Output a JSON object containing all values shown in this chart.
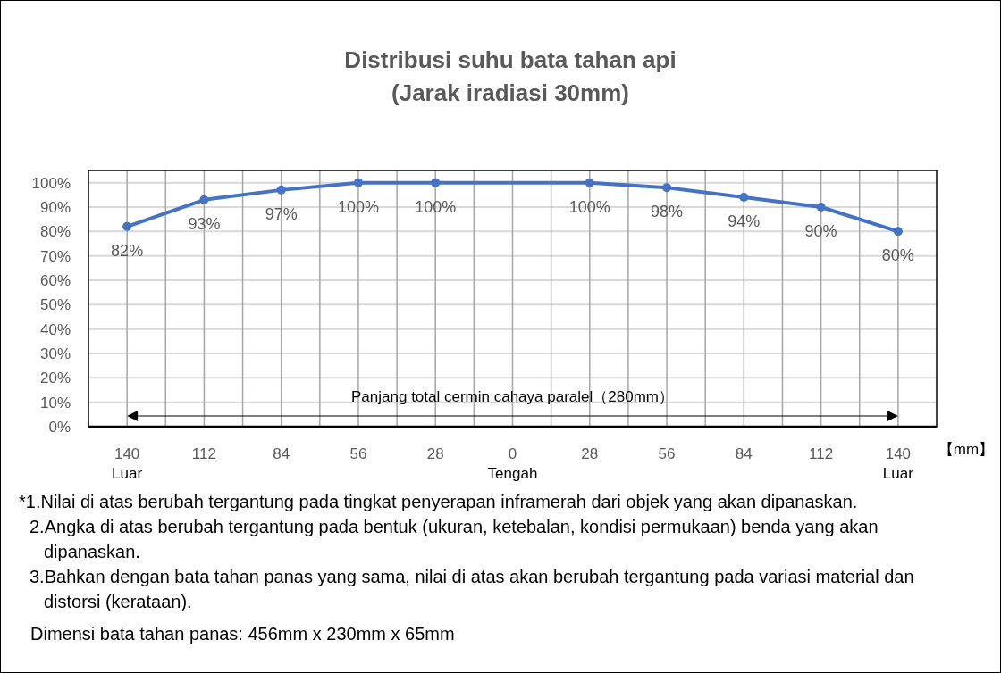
{
  "chart_data": {
    "type": "line",
    "title": "Distribusi suhu bata tahan api",
    "subtitle": "(Jarak iradiasi 30mm)",
    "xlabel": "【mm】",
    "x": [
      -140,
      -112,
      -84,
      -56,
      -28,
      28,
      56,
      84,
      112,
      140
    ],
    "series": [
      {
        "color": "#4472c4",
        "values": [
          82,
          93,
          97,
          100,
          100,
          100,
          98,
          94,
          90,
          80
        ],
        "value_labels": [
          "82%",
          "93%",
          "97%",
          "100%",
          "100%",
          "100%",
          "98%",
          "94%",
          "90%",
          "80%"
        ]
      }
    ],
    "xlim": [
      -154,
      154
    ],
    "xticks": [
      {
        "value": -140,
        "label": "140\nLuar"
      },
      {
        "value": -126,
        "label": null
      },
      {
        "value": -112,
        "label": "112"
      },
      {
        "value": -98,
        "label": null
      },
      {
        "value": -84,
        "label": "84"
      },
      {
        "value": -70,
        "label": null
      },
      {
        "value": -56,
        "label": "56"
      },
      {
        "value": -42,
        "label": null
      },
      {
        "value": -28,
        "label": "28"
      },
      {
        "value": -14,
        "label": null
      },
      {
        "value": 0,
        "label": "0\nTengah"
      },
      {
        "value": 14,
        "label": null
      },
      {
        "value": 28,
        "label": "28"
      },
      {
        "value": 42,
        "label": null
      },
      {
        "value": 56,
        "label": "56"
      },
      {
        "value": 70,
        "label": null
      },
      {
        "value": 84,
        "label": "84"
      },
      {
        "value": 98,
        "label": null
      },
      {
        "value": 112,
        "label": "112"
      },
      {
        "value": 126,
        "label": null
      },
      {
        "value": 140,
        "label": "140\nLuar"
      }
    ],
    "ylim": [
      0,
      105
    ],
    "yticks": [
      {
        "value": 0,
        "label": "0%"
      },
      {
        "value": 10,
        "label": "10%"
      },
      {
        "value": 20,
        "label": "20%"
      },
      {
        "value": 30,
        "label": "30%"
      },
      {
        "value": 40,
        "label": "40%"
      },
      {
        "value": 50,
        "label": "50%"
      },
      {
        "value": 60,
        "label": "60%"
      },
      {
        "value": 70,
        "label": "70%"
      },
      {
        "value": 80,
        "label": "80%"
      },
      {
        "value": 90,
        "label": "90%"
      },
      {
        "value": 100,
        "label": "100%"
      }
    ],
    "grid": true,
    "marker": "circle",
    "line_style": "solid",
    "annotations": [
      "Panjang total cermin cahaya paralel（280mm）",
      "*1.Nilai di atas berubah tergantung pada tingkat penyerapan inframerah dari objek yang akan dipanaskan.",
      "2.Angka di atas berubah tergantung pada bentuk (ukuran, ketebalan, kondisi permukaan) benda yang akan dipanaskan.",
      "3.Bahkan dengan bata tahan panas yang sama, nilai di atas akan berubah tergantung pada variasi material dan distorsi (kerataan).",
      "Dimensi bata tahan panas: 456mm x 230mm x 65mm"
    ]
  }
}
